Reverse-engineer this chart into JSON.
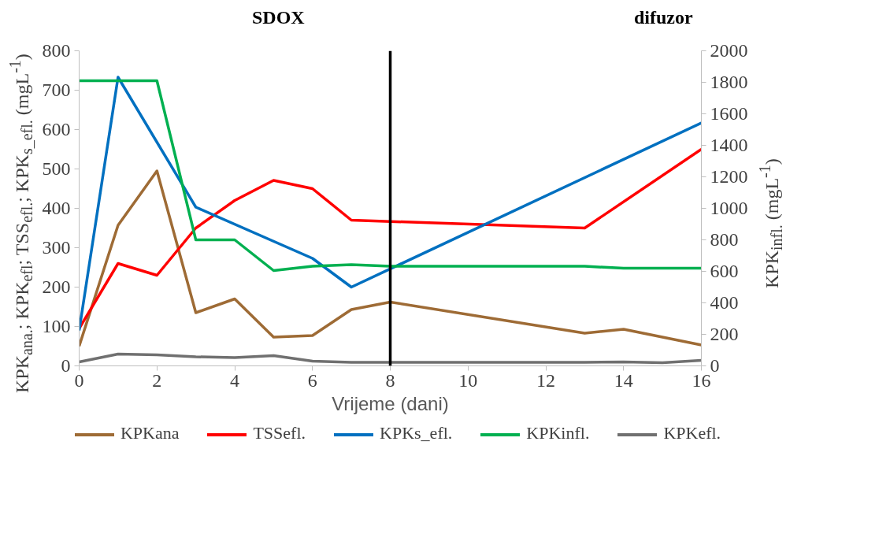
{
  "chart_data": {
    "type": "line",
    "xlabel": "Vrijeme (dani)",
    "ylabel": "KPK$_{ana.}$; KPK$_{efl}$; TSS$_{efl.}$; KPK$_{s_efl.}$ (mgL$^{-1}$)",
    "y2label": "KPK$_{infl.}$ (mgL$^{-1}$)",
    "annotations": [
      "SDOX",
      "difuzor"
    ],
    "xlim": [
      0,
      16
    ],
    "xticks": [
      0,
      2,
      4,
      6,
      8,
      10,
      12,
      14,
      16
    ],
    "ylim": [
      0,
      800
    ],
    "yticks": [
      0,
      100,
      200,
      300,
      400,
      500,
      600,
      700,
      800
    ],
    "y2lim": [
      0,
      2000
    ],
    "y2ticks": [
      0,
      200,
      400,
      600,
      800,
      1000,
      1200,
      1400,
      1600,
      1800,
      2000
    ],
    "grid": false,
    "legend": "bottom",
    "marker": "none",
    "line_style": "solid",
    "ref_lines": [
      {
        "axis": "x",
        "value": 8,
        "color": "#000000"
      }
    ],
    "series": [
      {
        "name": "KPKana",
        "color": "#9e6b35",
        "x": [
          0,
          1,
          2,
          3,
          4,
          5,
          6,
          7,
          8,
          13,
          14,
          16
        ],
        "values": [
          50,
          357,
          495,
          135,
          170,
          73,
          77,
          143,
          162,
          83,
          93,
          53
        ]
      },
      {
        "name": "TSSefl.",
        "color": "#ff0000",
        "x": [
          0,
          1,
          2,
          3,
          4,
          5,
          6,
          7,
          13,
          16
        ],
        "values": [
          95,
          260,
          230,
          350,
          420,
          471,
          450,
          370,
          350,
          550
        ]
      },
      {
        "name": "KPKs_efl.",
        "color": "#0070c0",
        "x": [
          0,
          1,
          3,
          6,
          7,
          16
        ],
        "values": [
          90,
          733,
          403,
          273,
          200,
          617
        ]
      },
      {
        "name": "KPKinfl.",
        "color": "#00b050",
        "axis": "y2",
        "x": [
          0,
          2,
          3,
          4,
          5,
          6,
          7,
          8,
          13,
          14,
          16
        ],
        "values": [
          1810,
          1810,
          800,
          800,
          605,
          632,
          642,
          632,
          632,
          620,
          620
        ]
      },
      {
        "name": "KPKefl.",
        "color": "#707070",
        "x": [
          0,
          1,
          2,
          3,
          4,
          5,
          6,
          7,
          8,
          13,
          14,
          15,
          16
        ],
        "values": [
          10,
          30,
          28,
          23,
          21,
          26,
          12,
          9,
          9,
          9,
          10,
          8,
          14
        ]
      }
    ]
  }
}
